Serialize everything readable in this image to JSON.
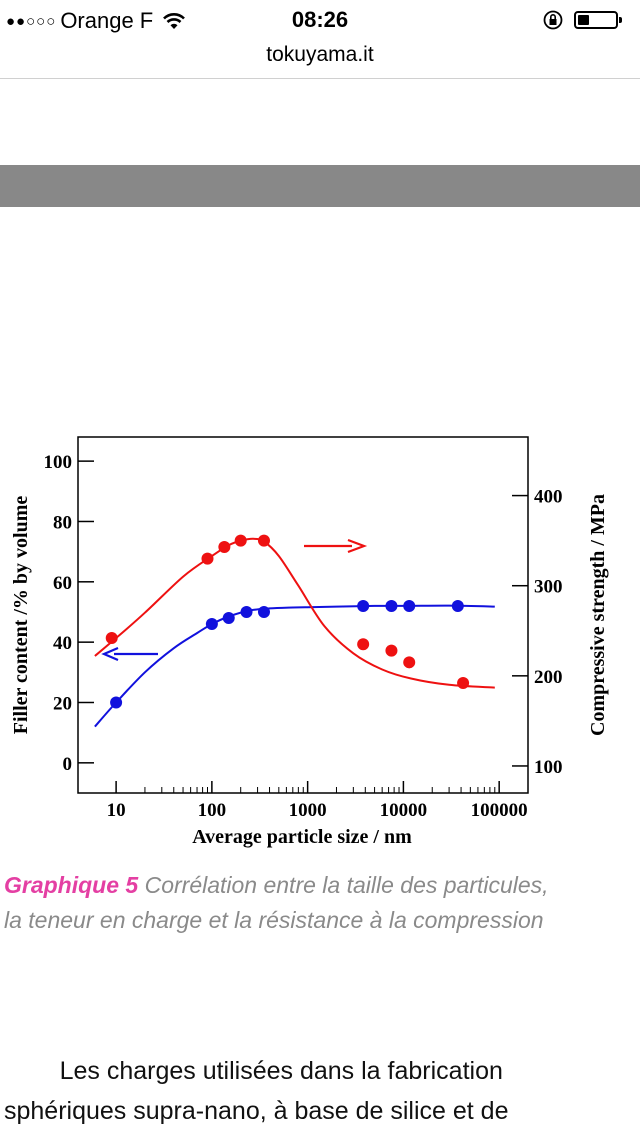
{
  "status_bar": {
    "signal": "●●○○○",
    "carrier": "Orange F",
    "wifi_icon": "wifi-icon",
    "time": "08:26",
    "lock_icon": "orientation-lock-icon",
    "battery_level": 0.3
  },
  "browser": {
    "url": "tokuyama.it"
  },
  "colors": {
    "accent_red": "#ee1111",
    "accent_blue": "#1111dd",
    "caption_accent": "#e43fa3",
    "caption_text": "#8a8a8a",
    "banner": "#888888"
  },
  "chart_data": {
    "type": "scatter",
    "xlabel": "Average particle size / nm",
    "ylabel_left": "Filler content /% by volume",
    "ylabel_right": "Compressive strength / MPa",
    "x_scale": "log",
    "xlim": [
      4,
      200000
    ],
    "x_ticks": [
      10,
      100,
      1000,
      10000,
      100000
    ],
    "x_tick_labels": [
      "10",
      "100",
      "1000",
      "10000",
      "100000"
    ],
    "ylim_left": [
      -10,
      108
    ],
    "y_ticks_left": [
      0,
      20,
      40,
      60,
      80,
      100
    ],
    "y_tick_labels_left": [
      "0",
      "20",
      "40",
      "60",
      "80",
      "100"
    ],
    "ylim_right": [
      70,
      465
    ],
    "y_ticks_right": [
      100,
      200,
      300,
      400
    ],
    "y_tick_labels_right": [
      "100",
      "200",
      "300",
      "400"
    ],
    "series": [
      {
        "name": "Filler content",
        "axis": "left",
        "color": "#1111dd",
        "x": [
          10,
          100,
          150,
          230,
          350,
          3800,
          7500,
          11500,
          37000
        ],
        "y": [
          20,
          46,
          48,
          50,
          50,
          52,
          52,
          52,
          52
        ],
        "curve_x": [
          6,
          10,
          20,
          40,
          70,
          100,
          150,
          250,
          400,
          700,
          1000,
          2000,
          5000,
          10000,
          30000,
          90000
        ],
        "curve_y": [
          12,
          20,
          30,
          38,
          43,
          46,
          48.5,
          50.5,
          51.2,
          51.5,
          51.6,
          51.8,
          52,
          52,
          52.1,
          51.8
        ]
      },
      {
        "name": "Compressive strength",
        "axis": "right",
        "color": "#ee1111",
        "x": [
          9,
          90,
          135,
          200,
          350,
          3800,
          7500,
          11500,
          42000
        ],
        "y": [
          242,
          330,
          343,
          350,
          350,
          235,
          228,
          215,
          192
        ],
        "curve_x": [
          6,
          10,
          20,
          50,
          100,
          150,
          200,
          270,
          350,
          500,
          800,
          1500,
          3000,
          6000,
          12000,
          30000,
          90000
        ],
        "curve_y": [
          222,
          242,
          270,
          310,
          333,
          345,
          350,
          352,
          349,
          333,
          300,
          255,
          225,
          207,
          197,
          190,
          187
        ]
      }
    ],
    "annotations": [
      {
        "text": "→",
        "direction": "right",
        "color": "#ee1111",
        "refers_to": "Compressive strength"
      },
      {
        "text": "←",
        "direction": "left",
        "color": "#1111dd",
        "refers_to": "Filler content"
      }
    ]
  },
  "caption": {
    "lead": "Graphique 5",
    "line1_rest": " Corrélation entre la taille des particules,",
    "line2": "la teneur en charge et la résistance à la compression"
  },
  "body": {
    "line1": "        Les charges utilisées dans la fabrication",
    "line2": "sphériques supra-nano, à base de silice et de"
  }
}
